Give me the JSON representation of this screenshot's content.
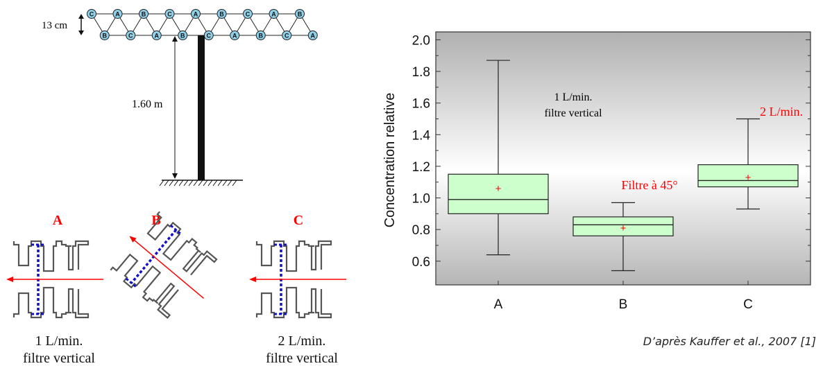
{
  "setup": {
    "node_letters_top": [
      "C",
      "A",
      "B",
      "C",
      "A",
      "B",
      "C",
      "A",
      "B"
    ],
    "node_letters_bottom": [
      "B",
      "C",
      "A",
      "B",
      "C",
      "A",
      "B",
      "C",
      "A"
    ],
    "spacing_label": "13 cm",
    "height_label": "1.60 m"
  },
  "sampler_orientations": [
    {
      "letter": "A",
      "caption_line1": "1 L/min.",
      "caption_line2": "filtre vertical"
    },
    {
      "letter": "B",
      "caption_line1": "",
      "caption_line2": ""
    },
    {
      "letter": "C",
      "caption_line1": "2 L/min.",
      "caption_line2": "filtre vertical"
    }
  ],
  "colors": {
    "accent": "#ff0000",
    "box_fill": "#ccffcc",
    "filter_line": "#1111cc",
    "plot_bg_top": "#b0b0b0",
    "plot_bg_mid": "#ffffff"
  },
  "chart_data": {
    "type": "box",
    "title": "",
    "xlabel": "",
    "ylabel": "Concentration relative",
    "categories": [
      "A",
      "B",
      "C"
    ],
    "ylim": [
      0.45,
      2.05
    ],
    "yticks": [
      "0.6",
      "0.8",
      "1.0",
      "1.2",
      "1.4",
      "1.6",
      "1.8",
      "2.0"
    ],
    "boxes": [
      {
        "category": "A",
        "min": 0.64,
        "q1": 0.9,
        "median": 0.99,
        "q3": 1.15,
        "max": 1.87,
        "mean": 1.06
      },
      {
        "category": "B",
        "min": 0.54,
        "q1": 0.76,
        "median": 0.83,
        "q3": 0.88,
        "max": 0.97,
        "mean": 0.81
      },
      {
        "category": "C",
        "min": 0.93,
        "q1": 1.07,
        "median": 1.11,
        "q3": 1.21,
        "max": 1.5,
        "mean": 1.13
      }
    ],
    "annotations": [
      {
        "text_line1": "1 L/min.",
        "text_line2": "filtre vertical"
      },
      {
        "text_line1": "2 L/min."
      },
      {
        "text_line1": "Filtre à 45°"
      }
    ],
    "grid": false
  },
  "credit": "D’après Kauffer et al., 2007 [1]"
}
